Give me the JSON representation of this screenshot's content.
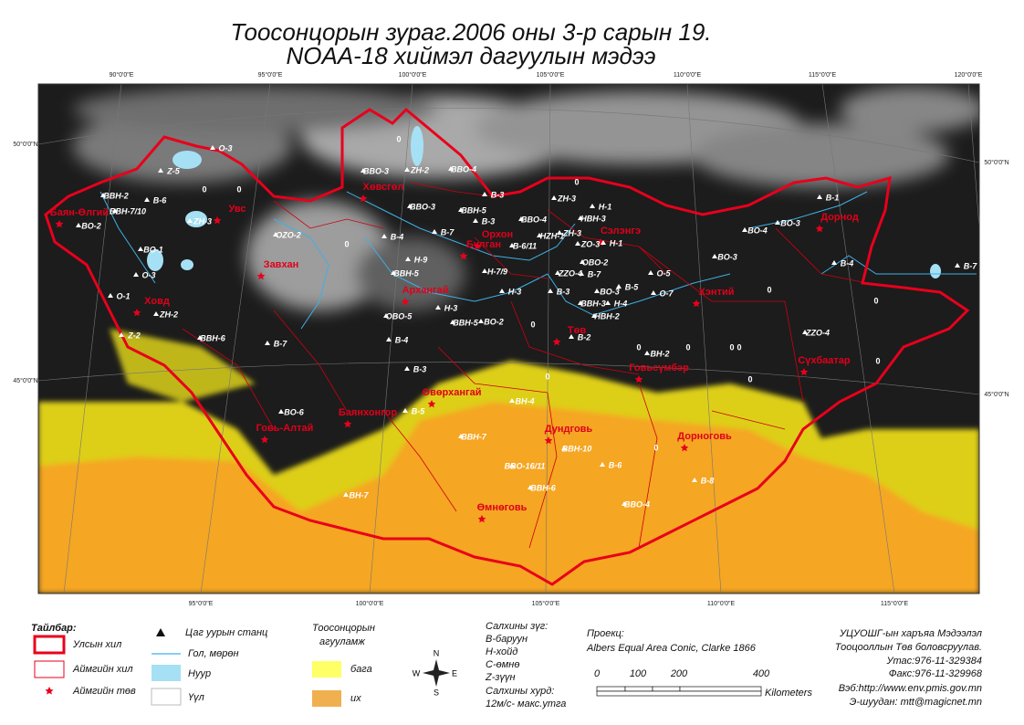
{
  "title": [
    "Тоосонцорын зураг.2006 оны 3-р сарын 19.",
    "NOAA-18 хиймэл дагуулын мэдээ"
  ],
  "graticule": {
    "top": [
      "90°0'0\"E",
      "95°0'0\"E",
      "100°0'0\"E",
      "105°0'0\"E",
      "110°0'0\"E",
      "115°0'0\"E",
      "120°0'0\"E"
    ],
    "bottom": [
      "95°0'0\"E",
      "100°0'0\"E",
      "105°0'0\"E",
      "110°0'0\"E",
      "115°0'0\"E"
    ],
    "left": [
      "50°0'0\"N",
      "45°0'0\"N"
    ],
    "right": [
      "50°0'0\"N",
      "45°0'0\"N"
    ]
  },
  "aimags": [
    "Баян-Өлгий",
    "Увс",
    "Хөвсгөл",
    "Завхан",
    "Ховд",
    "Архангай",
    "Булган",
    "Орхон",
    "Сэлэнгэ",
    "Төв",
    "Хэнтий",
    "Дорнод",
    "Сүхбаатар",
    "Говьсүмбэр",
    "Дорноговь",
    "Дундговь",
    "Өмнөговь",
    "Өвөрхангай",
    "Баянхонгор",
    "Говь-Алтай"
  ],
  "stations": [
    "O-3",
    "Z-5",
    "BBH-2",
    "B-6",
    "BBH-7/10",
    "BO-2",
    "ZH-3",
    "BO-1",
    "O-3",
    "O-1",
    "ZH-2",
    "Z-2",
    "BBH-6",
    "BBO-3",
    "ZH-2",
    "BBO-4",
    "BBO-3",
    "BBH-5",
    "B-3",
    "ZH-3",
    "H-1",
    "HBH-3",
    "BBO-4",
    "B-3",
    "B-4",
    "B-7",
    "OZO-2",
    "H-9",
    "ZH-3",
    "HZH-1",
    "B-6/11",
    "ZO-3",
    "H-1",
    "OBO-2",
    "ZZO-4",
    "B-7",
    "O-5",
    "H-7/9",
    "BBH-5",
    "B-5",
    "BO-3",
    "B-3",
    "H-3",
    "O-7",
    "BBH-3",
    "H-4",
    "HBH-2",
    "H-3",
    "OBO-5",
    "BBH-5",
    "BO-2",
    "B-2",
    "B-4",
    "B-7",
    "BH-2",
    "ZZO-4",
    "BO-3",
    "BO-3",
    "B-1",
    "BO-4",
    "B-4",
    "B-7",
    "B-3",
    "BO-6",
    "B-5",
    "BH-4",
    "BBH-7",
    "BBH-10",
    "BBO-16/11",
    "B-6",
    "BBH-6",
    "B-8",
    "BBO-4",
    "BH-7"
  ],
  "station_values": [
    0,
    0,
    0,
    0,
    0,
    0,
    0,
    0,
    0,
    0,
    0,
    0,
    0,
    0,
    0,
    0
  ],
  "legend": {
    "title": "Тайлбар:",
    "items": [
      "Улсын хил",
      "Аймгийн хил",
      "Аймгийн төв",
      "Цаг уурын станц",
      "Гол, мөрөн",
      "Нуур",
      "Үүл"
    ],
    "dust_title": [
      "Тоосонцорын",
      "агууламж"
    ],
    "dust_levels": [
      "бага",
      "их"
    ]
  },
  "compass": [
    "N",
    "E",
    "S",
    "W"
  ],
  "wind": [
    "Салхины зүг:",
    "В-баруун",
    "Н-хойд",
    "С-өмнө",
    "Z-зүүн",
    "Салхины хурд:",
    "12м/с- макс.утга"
  ],
  "projection": [
    "Проекц:",
    "Albers Equal Area Conic, Clarke 1866"
  ],
  "scale_bar": {
    "ticks": [
      0,
      100,
      200,
      400
    ],
    "unit": "Kilometers"
  },
  "credits": [
    "УЦУОШГ-ын харъяа Мэдээлэл",
    "Тооцооллын Төв боловсруулав.",
    "Утас:976-11-329384",
    "Факс:976-11-329968",
    "Вэб:http://www.env.pmis.gov.mn",
    "Э-шуудан: mtt@magicnet.mn"
  ]
}
